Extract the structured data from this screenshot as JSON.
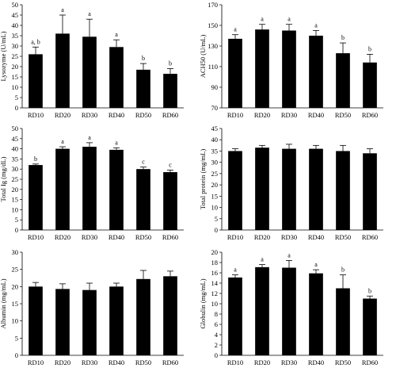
{
  "chart_data": [
    {
      "type": "bar",
      "ylabel": "Lysozyme (U/mL)",
      "categories": [
        "RD10",
        "RD20",
        "RD30",
        "RD40",
        "RD50",
        "RD60"
      ],
      "values": [
        26,
        36,
        34.5,
        29.5,
        18.5,
        16.5
      ],
      "errors": [
        3.5,
        9,
        8.5,
        3.5,
        3,
        2.5
      ],
      "significance": [
        "a, b",
        "a",
        "a",
        "a",
        "b",
        "b"
      ],
      "ylim": [
        0,
        50
      ],
      "yticks": [
        0,
        5,
        10,
        15,
        20,
        25,
        30,
        35,
        40,
        45,
        50
      ]
    },
    {
      "type": "bar",
      "ylabel": "ACH50 (U/mL)",
      "categories": [
        "RD10",
        "RD20",
        "RD30",
        "RD40",
        "RD50",
        "RD60"
      ],
      "values": [
        137,
        146,
        145,
        140,
        123,
        114
      ],
      "errors": [
        4,
        5,
        6,
        5,
        10,
        8
      ],
      "significance": [
        "a",
        "a",
        "a",
        "a",
        "b",
        "b"
      ],
      "ylim": [
        70,
        170
      ],
      "yticks": [
        70,
        90,
        110,
        130,
        150,
        170
      ]
    },
    {
      "type": "bar",
      "ylabel": "Total Ig (mg/dL)",
      "categories": [
        "RD10",
        "RD20",
        "RD30",
        "RD40",
        "RD50",
        "RD60"
      ],
      "values": [
        32,
        40,
        41,
        39.5,
        30,
        28.5
      ],
      "errors": [
        0.5,
        1,
        2,
        1,
        1,
        1
      ],
      "significance": [
        "b",
        "a",
        "a",
        "a",
        "c",
        "c"
      ],
      "ylim": [
        0,
        50
      ],
      "yticks": [
        0,
        5,
        10,
        15,
        20,
        25,
        30,
        35,
        40,
        45,
        50
      ]
    },
    {
      "type": "bar",
      "ylabel": "Total protein (mg/mL)",
      "categories": [
        "RD10",
        "RD20",
        "RD30",
        "RD40",
        "RD50",
        "RD60"
      ],
      "values": [
        35,
        36.5,
        36,
        36,
        35,
        34
      ],
      "errors": [
        1,
        1,
        2,
        1.5,
        2.5,
        2
      ],
      "significance": [
        "",
        "",
        "",
        "",
        "",
        ""
      ],
      "ylim": [
        0,
        45
      ],
      "yticks": [
        0,
        5,
        10,
        15,
        20,
        25,
        30,
        35,
        40,
        45
      ]
    },
    {
      "type": "bar",
      "ylabel": "Albumin (mg/mL)",
      "categories": [
        "RD10",
        "RD20",
        "RD30",
        "RD40",
        "RD50",
        "RD60"
      ],
      "values": [
        20,
        19.3,
        19,
        20,
        22.2,
        23
      ],
      "errors": [
        1.2,
        1.5,
        2,
        1,
        2.5,
        1.5
      ],
      "significance": [
        "",
        "",
        "",
        "",
        "",
        ""
      ],
      "ylim": [
        0,
        30
      ],
      "yticks": [
        0,
        5,
        10,
        15,
        20,
        25,
        30
      ]
    },
    {
      "type": "bar",
      "ylabel": "Globulin (mg/mL)",
      "categories": [
        "RD10",
        "RD20",
        "RD30",
        "RD40",
        "RD50",
        "RD60"
      ],
      "values": [
        15.1,
        17.1,
        17,
        15.9,
        13,
        11
      ],
      "errors": [
        0.5,
        0.5,
        1.4,
        0.7,
        2.6,
        0.5
      ],
      "significance": [
        "a",
        "a",
        "a",
        "a",
        "b",
        "b"
      ],
      "ylim": [
        0,
        20
      ],
      "yticks": [
        0,
        2,
        4,
        6,
        8,
        10,
        12,
        14,
        16,
        18,
        20
      ]
    }
  ]
}
